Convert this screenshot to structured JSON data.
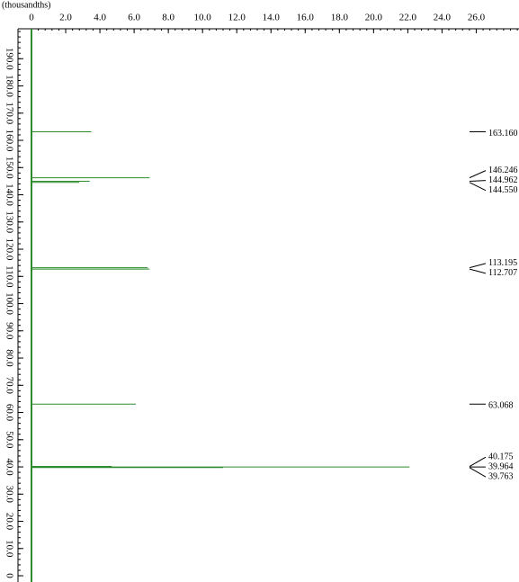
{
  "chart_data": {
    "type": "spectrum",
    "unit_label": "(thousandths)",
    "color": "#2e8b2e",
    "x": [
      163.16,
      146.246,
      144.962,
      144.55,
      113.195,
      112.707,
      63.068,
      40.175,
      39.964,
      39.763
    ],
    "x_labels": [
      "163.160",
      "146.246",
      "144.962",
      "144.550",
      "113.195",
      "112.707",
      "63.068",
      "40.175",
      "39.964",
      "39.763"
    ],
    "values": [
      3.5,
      6.9,
      3.4,
      2.8,
      6.8,
      6.9,
      6.1,
      4.7,
      22.1,
      11.2
    ],
    "xlim": [
      -2.3,
      201
    ],
    "ylim": [
      0,
      28.5
    ],
    "xticks": [
      0,
      {
        "value": 10,
        "label": "10.0"
      },
      {
        "value": 20,
        "label": "20.0"
      },
      {
        "value": 30,
        "label": "30.0"
      },
      {
        "value": 40,
        "label": "40.0"
      },
      {
        "value": 50,
        "label": "50.0"
      },
      {
        "value": 60,
        "label": "60.0"
      },
      {
        "value": 70,
        "label": "70.0"
      },
      {
        "value": 80,
        "label": "80.0"
      },
      {
        "value": 90,
        "label": "90.0"
      },
      {
        "value": 100,
        "label": "100.0"
      },
      {
        "value": 110,
        "label": "110.0"
      },
      {
        "value": 120,
        "label": "120.0"
      },
      {
        "value": 130,
        "label": "130.0"
      },
      {
        "value": 140,
        "label": "140.0"
      },
      {
        "value": 150,
        "label": "150.0"
      },
      {
        "value": 160,
        "label": "160.0"
      },
      {
        "value": 170,
        "label": "170.0"
      },
      {
        "value": 180,
        "label": "180.0"
      },
      {
        "value": 190,
        "label": "190.0"
      }
    ],
    "yticks": [
      0,
      {
        "value": 2,
        "label": "2.0"
      },
      {
        "value": 4,
        "label": "4.0"
      },
      {
        "value": 6,
        "label": "6.0"
      },
      {
        "value": 8,
        "label": "8.0"
      },
      {
        "value": 10,
        "label": "10.0"
      },
      {
        "value": 12,
        "label": "12.0"
      },
      {
        "value": 14,
        "label": "14.0"
      },
      {
        "value": 16,
        "label": "16.0"
      },
      {
        "value": 18,
        "label": "18.0"
      },
      {
        "value": 20,
        "label": "20.0"
      },
      {
        "value": 22,
        "label": "22.0"
      },
      {
        "value": 24,
        "label": "24.0"
      },
      {
        "value": 26,
        "label": "26.0"
      }
    ]
  }
}
